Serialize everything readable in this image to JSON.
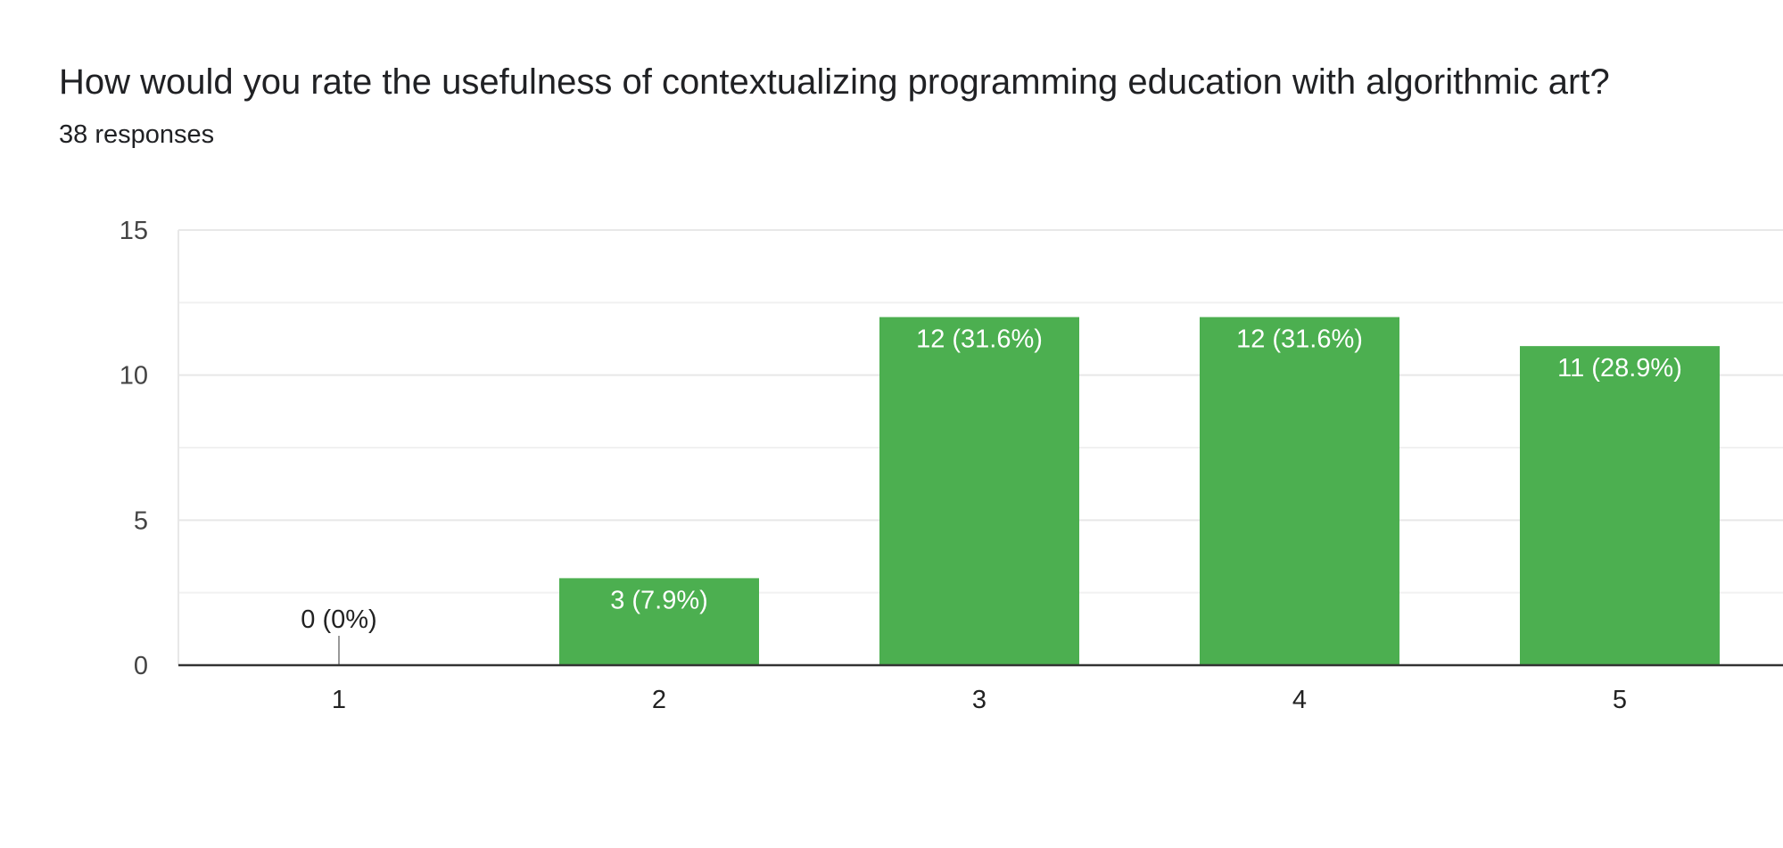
{
  "question": {
    "title": "How would you rate the usefulness of contextualizing programming education with algorithmic art?",
    "responses": "38 responses"
  },
  "chart_data": {
    "type": "bar",
    "categories": [
      "1",
      "2",
      "3",
      "4",
      "5"
    ],
    "values": [
      0,
      3,
      12,
      12,
      11
    ],
    "data_labels": [
      "0 (0%)",
      "3 (7.9%)",
      "12 (31.6%)",
      "12 (31.6%)",
      "11 (28.9%)"
    ],
    "ylim": [
      0,
      15
    ],
    "yticks": [
      0,
      5,
      10,
      15
    ],
    "minor_grid": [
      2.5,
      7.5,
      12.5
    ],
    "grid": true,
    "legend": "none",
    "bar_color": "#4caf50",
    "inner_label_color": "#ffffff",
    "outer_label_color": "#222222",
    "axis_color": "#333333",
    "grid_color": "#e8e8e8"
  }
}
